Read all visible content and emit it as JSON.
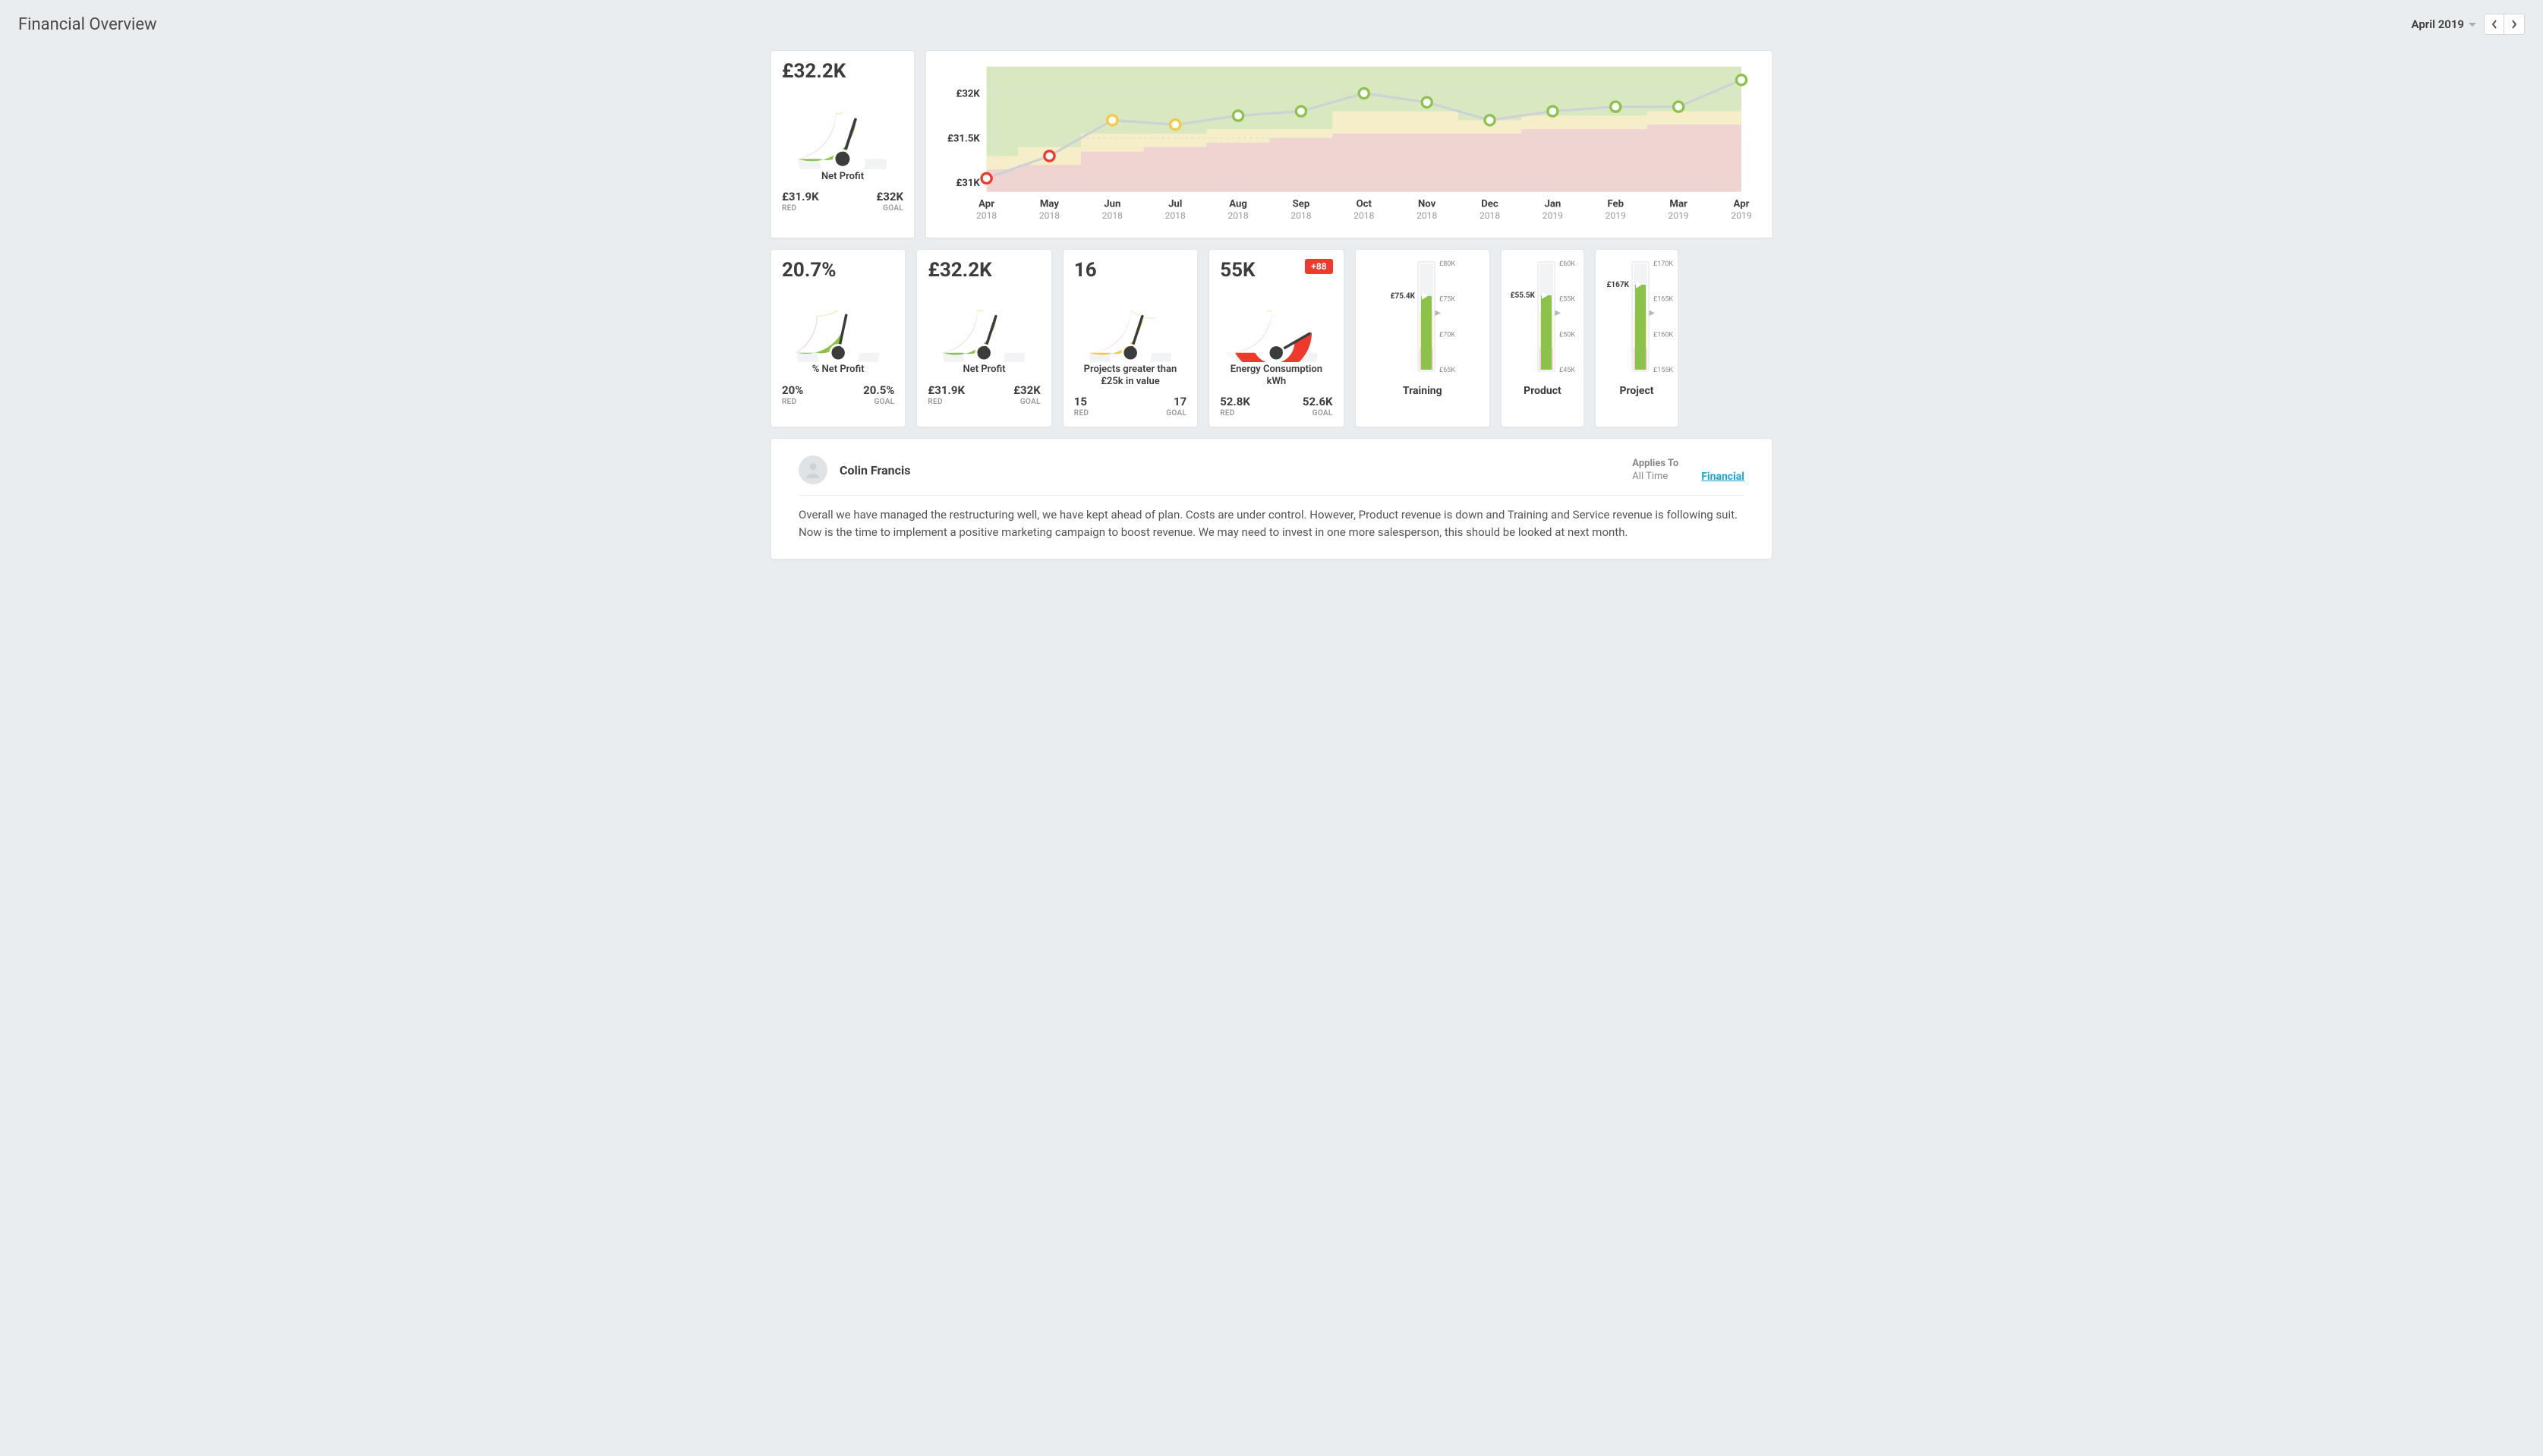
{
  "page": {
    "title": "Financial Overview",
    "period": "April 2019"
  },
  "colors": {
    "green": "#8bc34a",
    "green_light": "#d8e8c1",
    "yellow": "#f5c942",
    "yellow_light": "#f5eec8",
    "red": "#ee3a2c",
    "red_light": "#efd4d1",
    "grey": "#cfd2d4",
    "grey_dark": "#3c3c3c",
    "axis_text": "#888"
  },
  "timeseries": {
    "type": "line",
    "ylim": [
      30.9,
      32.3
    ],
    "yticks": [
      31,
      31.5,
      32
    ],
    "ytick_labels": [
      "£31K",
      "£31.5K",
      "£32K"
    ],
    "months": [
      "Apr",
      "May",
      "Jun",
      "Jul",
      "Aug",
      "Sep",
      "Oct",
      "Nov",
      "Dec",
      "Jan",
      "Feb",
      "Mar",
      "Apr"
    ],
    "years": [
      "2018",
      "2018",
      "2018",
      "2018",
      "2018",
      "2018",
      "2018",
      "2018",
      "2018",
      "2019",
      "2019",
      "2019",
      "2019"
    ],
    "values": [
      31.05,
      31.3,
      31.7,
      31.65,
      31.75,
      31.8,
      32.0,
      31.9,
      31.7,
      31.8,
      31.85,
      31.85,
      32.15
    ],
    "point_colors": [
      "#ee3a2c",
      "#ee3a2c",
      "#f5c942",
      "#f5c942",
      "#8bc34a",
      "#8bc34a",
      "#8bc34a",
      "#8bc34a",
      "#8bc34a",
      "#8bc34a",
      "#8bc34a",
      "#8bc34a",
      "#8bc34a"
    ],
    "red_upper": [
      31.15,
      31.2,
      31.35,
      31.4,
      31.45,
      31.5,
      31.55,
      31.55,
      31.55,
      31.6,
      31.6,
      31.65,
      31.65
    ],
    "yellow_upper": [
      31.3,
      31.4,
      31.55,
      31.55,
      31.6,
      31.6,
      31.8,
      31.8,
      31.7,
      31.75,
      31.75,
      31.8,
      31.8
    ],
    "line_color": "#cfd2d4",
    "line_width": 3,
    "marker_radius": 6,
    "background_color": "#ffffff"
  },
  "gauges": [
    {
      "id": "g1",
      "value_display": "£32.2K",
      "label": "Net Profit",
      "red_display": "£31.9K",
      "goal_display": "£32K",
      "min": 31.0,
      "max": 33.0,
      "red_upper": 31.9,
      "goal": 32.0,
      "value": 32.2,
      "fill_color": "#8bc34a"
    },
    {
      "id": "g2",
      "value_display": "20.7%",
      "label": "% Net Profit",
      "red_display": "20%",
      "goal_display": "20.5%",
      "min": 19.0,
      "max": 22.0,
      "red_upper": 20.0,
      "goal": 20.5,
      "value": 20.7,
      "fill_color": "#8bc34a"
    },
    {
      "id": "g3",
      "value_display": "£32.2K",
      "label": "Net Profit",
      "red_display": "£31.9K",
      "goal_display": "£32K",
      "min": 31.0,
      "max": 33.0,
      "red_upper": 31.9,
      "goal": 32.0,
      "value": 32.2,
      "fill_color": "#8bc34a"
    },
    {
      "id": "g4",
      "value_display": "16",
      "label": "Projects greater than £25k in value",
      "red_display": "15",
      "goal_display": "17",
      "min": 10,
      "max": 20,
      "red_upper": 15,
      "goal": 17,
      "value": 16,
      "fill_color": "#f5c942"
    },
    {
      "id": "g5",
      "value_display": "55K",
      "badge": "+88",
      "label": "Energy Consumption kWh",
      "red_display": "52.8K",
      "goal_display": "52.6K",
      "min": 50,
      "max": 56,
      "red_upper": 52.8,
      "goal": 52.6,
      "value": 55,
      "fill_color": "#ee3a2c"
    }
  ],
  "bullets": [
    {
      "id": "b1",
      "title": "Training",
      "value_display": "£75.4K",
      "min": 65,
      "max": 80,
      "ticks": [
        65,
        70,
        75,
        80
      ],
      "tick_labels": [
        "£65K",
        "£70K",
        "£75K",
        "£80K"
      ],
      "red_upper": 68,
      "yellow_upper": 73,
      "value": 75.4
    },
    {
      "id": "b2",
      "title": "Product",
      "value_display": "£55.5K",
      "min": 45,
      "max": 60,
      "ticks": [
        45,
        50,
        55,
        60
      ],
      "tick_labels": [
        "£45K",
        "£50K",
        "£55K",
        "£60K"
      ],
      "red_upper": 48,
      "yellow_upper": 53,
      "value": 55.5
    },
    {
      "id": "b3",
      "title": "Project",
      "value_display": "£167K",
      "min": 155,
      "max": 170,
      "ticks": [
        155,
        160,
        165,
        170
      ],
      "tick_labels": [
        "£155K",
        "£160K",
        "£165K",
        "£170K"
      ],
      "red_upper": 158,
      "yellow_upper": 163,
      "value": 167
    }
  ],
  "comment": {
    "author": "Colin Francis",
    "applies_to_label": "Applies To",
    "applies_to_value": "All Time",
    "category_link": "Financial",
    "body": "Overall we have managed the restructuring well, we have kept ahead of plan. Costs are under control. However, Product revenue is down and Training and Service revenue is following suit. Now is the time to implement a positive marketing campaign to boost revenue. We may need to invest in one more salesperson, this should be looked at next month."
  },
  "labels": {
    "red": "RED",
    "goal": "GOAL"
  }
}
